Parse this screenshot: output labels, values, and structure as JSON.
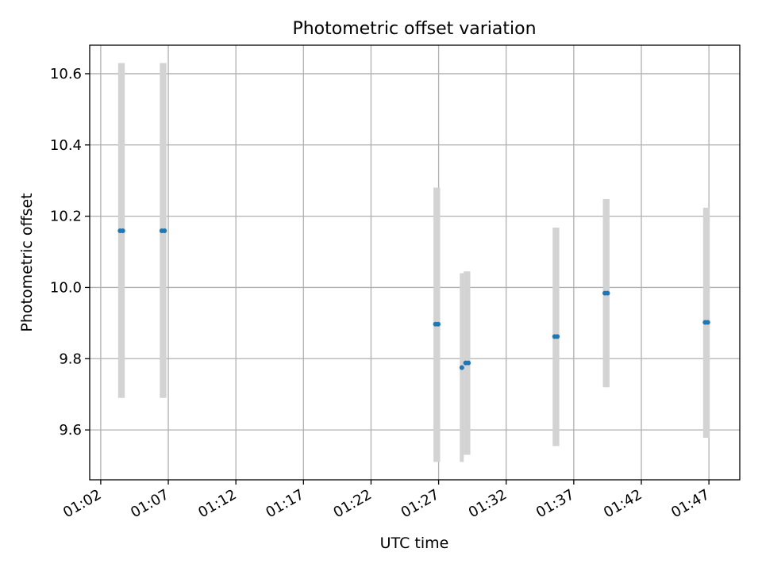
{
  "chart_data": {
    "type": "scatter",
    "title": "Photometric offset variation",
    "xlabel": "UTC time",
    "ylabel": "Photometric offset",
    "x_ticks": [
      "01:02",
      "01:07",
      "01:12",
      "01:17",
      "01:22",
      "01:27",
      "01:32",
      "01:37",
      "01:42",
      "01:47"
    ],
    "y_ticks": [
      9.6,
      9.8,
      10.0,
      10.2,
      10.4,
      10.6
    ],
    "xlim": [
      "01:01:11",
      "01:49:17"
    ],
    "ylim": [
      9.46,
      10.68
    ],
    "grid": true,
    "colors": {
      "points": "#1f77b4",
      "error_bars": "#d3d3d3",
      "grid": "#b0b0b0"
    },
    "points": [
      {
        "time": "01:03:26",
        "value": 10.159,
        "err_low": 9.69,
        "err_high": 10.63
      },
      {
        "time": "01:03:38",
        "value": 10.159,
        "err_low": 9.69,
        "err_high": 10.63
      },
      {
        "time": "01:06:31",
        "value": 10.159,
        "err_low": 9.69,
        "err_high": 10.63
      },
      {
        "time": "01:06:43",
        "value": 10.159,
        "err_low": 9.69,
        "err_high": 10.63
      },
      {
        "time": "01:26:46",
        "value": 9.897,
        "err_low": 9.51,
        "err_high": 10.28
      },
      {
        "time": "01:26:58",
        "value": 9.897,
        "err_low": 9.51,
        "err_high": 10.28
      },
      {
        "time": "01:28:43",
        "value": 9.775,
        "err_low": 9.51,
        "err_high": 10.04
      },
      {
        "time": "01:29:00",
        "value": 9.788,
        "err_low": 9.53,
        "err_high": 10.045
      },
      {
        "time": "01:29:12",
        "value": 9.788,
        "err_low": 9.53,
        "err_high": 10.045
      },
      {
        "time": "01:35:35",
        "value": 9.862,
        "err_low": 9.555,
        "err_high": 10.168
      },
      {
        "time": "01:35:47",
        "value": 9.862,
        "err_low": 9.555,
        "err_high": 10.168
      },
      {
        "time": "01:39:18",
        "value": 9.984,
        "err_low": 9.72,
        "err_high": 10.248
      },
      {
        "time": "01:39:30",
        "value": 9.984,
        "err_low": 9.72,
        "err_high": 10.248
      },
      {
        "time": "01:46:43",
        "value": 9.902,
        "err_low": 9.578,
        "err_high": 10.224
      },
      {
        "time": "01:46:55",
        "value": 9.902,
        "err_low": 9.578,
        "err_high": 10.224
      }
    ]
  }
}
